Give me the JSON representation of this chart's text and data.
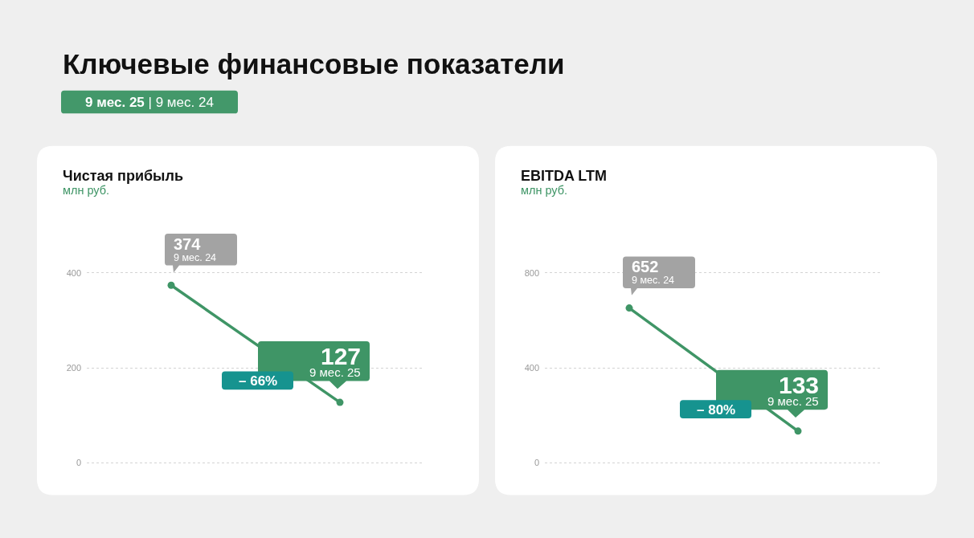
{
  "chart_data": [
    {
      "type": "other",
      "title": "Ключевые финансовые показатели",
      "subtitle": "9 мес. 25 | 9 мес. 24"
    },
    {
      "type": "line",
      "title": "Чистая прибыль",
      "subtitle": "млн руб.",
      "categories": [
        "9 мес. 24",
        "9 мес. 25"
      ],
      "series": [
        {
          "color": "#3f9566",
          "values": [
            374,
            127
          ]
        }
      ],
      "ylim": [
        0,
        400
      ],
      "yticks": [
        0,
        200,
        400
      ],
      "grid": "y",
      "tick_labels": "y",
      "marker": "circle",
      "line_style": "solid",
      "data_labels": true,
      "annotations": [
        "– 66%"
      ]
    },
    {
      "type": "line",
      "title": "EBITDA LTM",
      "subtitle": "млн руб.",
      "categories": [
        "9 мес. 24",
        "9 мес. 25"
      ],
      "series": [
        {
          "color": "#3f9566",
          "values": [
            652,
            133
          ]
        }
      ],
      "ylim": [
        0,
        800
      ],
      "yticks": [
        0,
        400,
        800
      ],
      "grid": "y",
      "tick_labels": "y",
      "marker": "circle",
      "line_style": "solid",
      "data_labels": true,
      "annotations": [
        "– 80%"
      ]
    }
  ]
}
